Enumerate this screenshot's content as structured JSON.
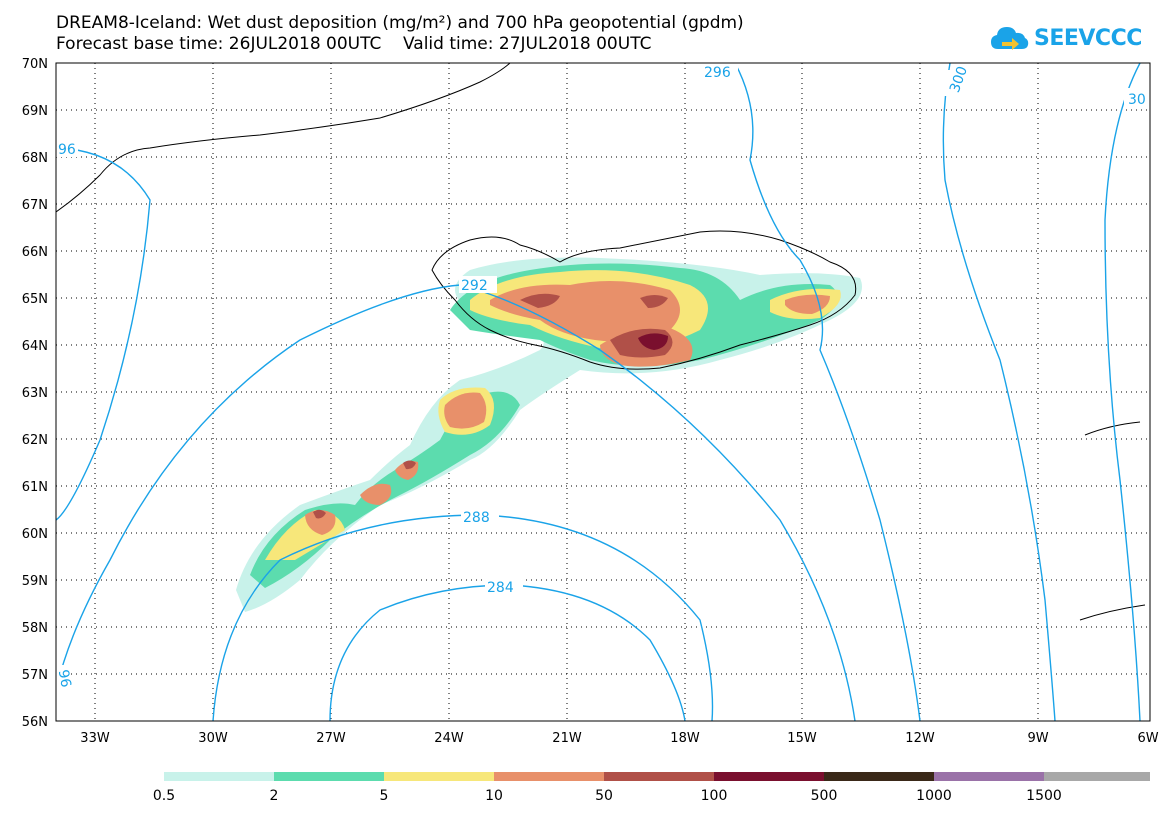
{
  "title": {
    "line1": "DREAM8-Iceland: Wet dust deposition (mg/m²) and 700 hPa geopotential (gpdm)",
    "line2": "Forecast base time: 26JUL2018 00UTC    Valid time: 27JUL2018 00UTC"
  },
  "logo": {
    "text": "SEEVCCC",
    "icon": "cloud-arrow-icon"
  },
  "axes": {
    "lat_labels": [
      "70N",
      "69N",
      "68N",
      "67N",
      "66N",
      "65N",
      "64N",
      "63N",
      "62N",
      "61N",
      "60N",
      "59N",
      "58N",
      "57N",
      "56N"
    ],
    "lon_labels": [
      "33W",
      "30W",
      "27W",
      "24W",
      "21W",
      "18W",
      "15W",
      "12W",
      "9W",
      "6W"
    ],
    "lat_range": [
      56,
      70
    ],
    "lon_range": [
      -34.5,
      -6
    ],
    "grid": "dotted"
  },
  "contours": {
    "color": "#1aa3e8",
    "labels": [
      "296",
      "300",
      "30",
      "96",
      "292",
      "288",
      "284",
      "96"
    ]
  },
  "legend": {
    "labels": [
      "0.5",
      "2",
      "5",
      "10",
      "50",
      "100",
      "500",
      "1000",
      "1500"
    ],
    "colors": [
      "#c8f2ea",
      "#5cdcae",
      "#f7e77a",
      "#e8906a",
      "#b05048",
      "#7a0f2e",
      "#3a2818",
      "#9a72a8",
      "#a8a8a8"
    ]
  }
}
